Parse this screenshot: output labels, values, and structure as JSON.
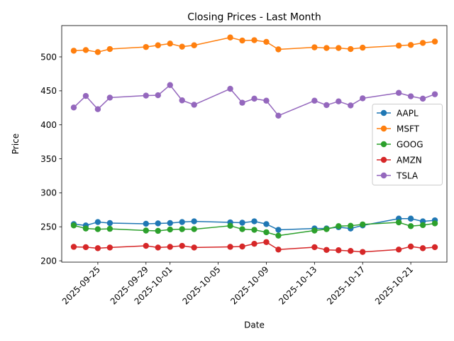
{
  "chart_data": {
    "type": "line",
    "title": "Closing Prices - Last Month",
    "xlabel": "Date",
    "ylabel": "Price",
    "x_type": "date",
    "x": [
      "2025-09-23",
      "2025-09-24",
      "2025-09-25",
      "2025-09-26",
      "2025-09-29",
      "2025-09-30",
      "2025-10-01",
      "2025-10-02",
      "2025-10-03",
      "2025-10-06",
      "2025-10-07",
      "2025-10-08",
      "2025-10-09",
      "2025-10-10",
      "2025-10-13",
      "2025-10-14",
      "2025-10-15",
      "2025-10-16",
      "2025-10-17",
      "2025-10-20",
      "2025-10-21",
      "2025-10-22",
      "2025-10-23"
    ],
    "x_ticks": [
      "2025-09-25",
      "2025-09-29",
      "2025-10-01",
      "2025-10-05",
      "2025-10-09",
      "2025-10-13",
      "2025-10-17",
      "2025-10-21"
    ],
    "xlim": [
      "2025-09-22",
      "2025-10-24"
    ],
    "ylim": [
      198,
      546
    ],
    "y_ticks": [
      200,
      250,
      300,
      350,
      400,
      450,
      500
    ],
    "grid": false,
    "legend": "center-right",
    "series": [
      {
        "name": "AAPL",
        "color": "#1f77b4",
        "values": [
          254,
          252,
          257,
          255.5,
          254.5,
          255,
          255.5,
          257,
          258,
          256.5,
          256,
          258,
          254,
          245.5,
          247.5,
          247.5,
          249.5,
          247.5,
          252,
          262,
          262,
          258,
          259.5
        ]
      },
      {
        "name": "MSFT",
        "color": "#ff7f0e",
        "values": [
          509,
          510,
          507,
          511.5,
          514.5,
          517,
          519.5,
          515,
          517,
          528.5,
          524,
          524.5,
          522,
          511,
          514,
          513,
          513,
          511.5,
          513.5,
          516.5,
          517.5,
          520.5,
          522.5
        ]
      },
      {
        "name": "GOOG",
        "color": "#2ca02c",
        "values": [
          252,
          247.5,
          246.5,
          247,
          244.5,
          244,
          246,
          246.5,
          246.5,
          251.5,
          246.5,
          245.5,
          242,
          237,
          244.5,
          246.5,
          251,
          251.5,
          253.5,
          256.5,
          251,
          252.5,
          255
        ]
      },
      {
        "name": "AMZN",
        "color": "#d62728",
        "values": [
          220.5,
          220,
          218.5,
          219.5,
          222,
          219.5,
          220.5,
          222,
          219.5,
          220.5,
          221,
          225,
          227.5,
          216.5,
          220,
          216,
          215.5,
          214.5,
          213,
          216.5,
          221,
          218.5,
          220
        ]
      },
      {
        "name": "TSLA",
        "color": "#9467bd",
        "values": [
          425.5,
          442.5,
          423,
          440,
          443,
          443.5,
          458.5,
          436,
          429.5,
          453,
          432.5,
          438.5,
          435.5,
          413.5,
          435.5,
          429,
          434.5,
          428.5,
          439,
          447,
          442,
          438.5,
          445
        ]
      }
    ]
  }
}
